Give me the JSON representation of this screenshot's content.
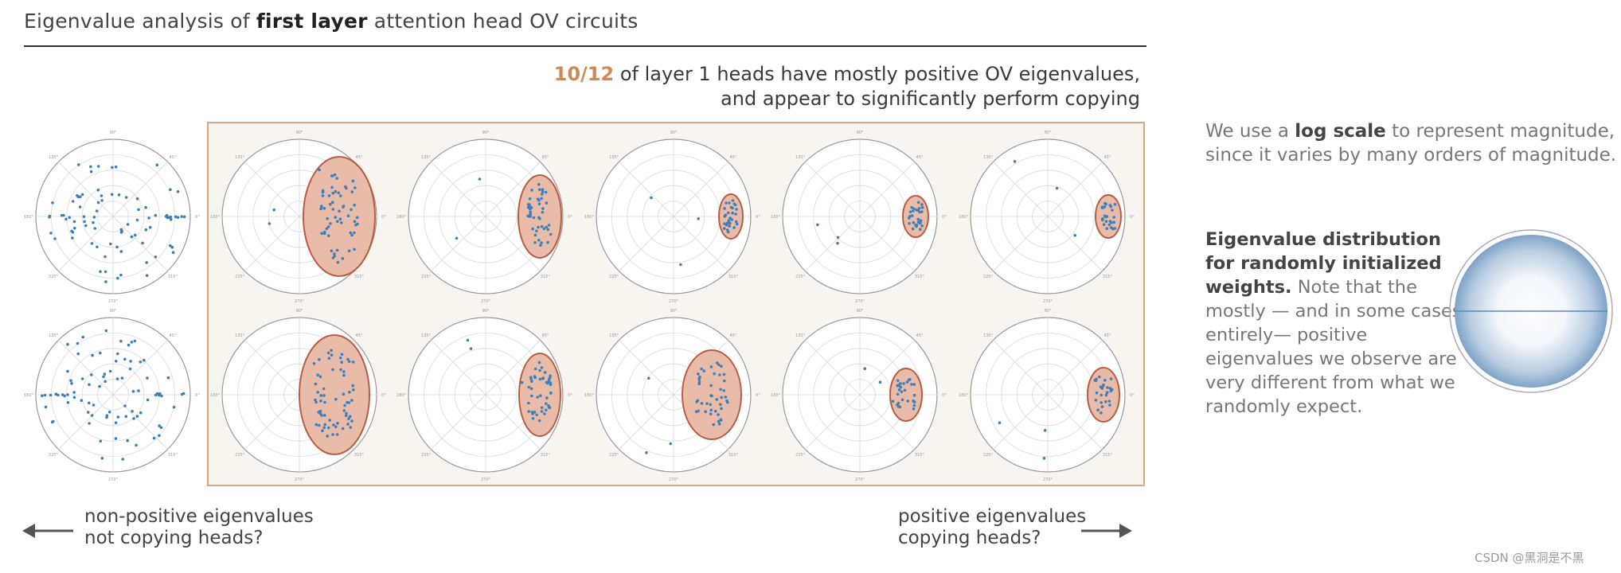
{
  "header": {
    "title_before": "Eigenvalue analysis of ",
    "title_bold": "first layer",
    "title_after": " attention head OV circuits"
  },
  "callout": {
    "ratio": "10/12",
    "line1_rest": " of layer 1 heads have mostly positive OV eigenvalues,",
    "line2": "and appear to significantly perform copying"
  },
  "side_notes": {
    "log_scale_before": "We use a ",
    "log_scale_bold": "log scale",
    "log_scale_after": " to represent magnitude, since it varies by many orders of magnitude.",
    "random_bold": "Eigenvalue distribution for randomly initialized weights.",
    "random_text": " Note that the mostly — and in some cases, entirely— positive eigenvalues we observe are very different from what we randomly expect."
  },
  "footer": {
    "left_line1": "non-positive eigenvalues",
    "left_line2": "not copying heads?",
    "right_line1": "positive eigenvalues",
    "right_line2": "copying heads?"
  },
  "watermark": "CSDN @黑洞是不黑",
  "colors": {
    "points": "#3f7fb8",
    "highlight_fill": "#e8b9a6",
    "highlight_stroke": "#b5543b",
    "panel_fill": "#f8f5f0",
    "panel_border": "#d9a788",
    "accent_text": "#c98a5c"
  },
  "chart_data": {
    "type": "scatter",
    "description_of_axes": "polar plot: angle = eigenvalue phase, radius = log magnitude",
    "angle_tick_labels": [
      "0°",
      "45°",
      "90°",
      "135°",
      "180°",
      "225°",
      "270°",
      "315°"
    ],
    "heads": [
      {
        "row": 1,
        "col": 0,
        "copying": false
      },
      {
        "row": 1,
        "col": 1,
        "copying": true
      },
      {
        "row": 1,
        "col": 2,
        "copying": true
      },
      {
        "row": 1,
        "col": 3,
        "copying": true
      },
      {
        "row": 1,
        "col": 4,
        "copying": true
      },
      {
        "row": 1,
        "col": 5,
        "copying": true
      },
      {
        "row": 2,
        "col": 0,
        "copying": false
      },
      {
        "row": 2,
        "col": 1,
        "copying": true
      },
      {
        "row": 2,
        "col": 2,
        "copying": true
      },
      {
        "row": 2,
        "col": 3,
        "copying": true
      },
      {
        "row": 2,
        "col": 4,
        "copying": true
      },
      {
        "row": 2,
        "col": 5,
        "copying": true
      }
    ]
  }
}
